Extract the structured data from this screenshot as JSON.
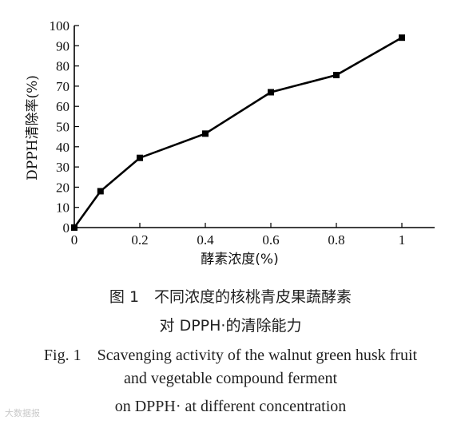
{
  "chart_data": {
    "type": "line",
    "x": [
      0,
      0.08,
      0.2,
      0.4,
      0.6,
      0.8,
      1.0
    ],
    "y": [
      0,
      18,
      34.5,
      46.5,
      67,
      75.5,
      94
    ],
    "xlabel": "酵素浓度(%)",
    "ylabel": "DPPH清除率(%)",
    "xlim": [
      0,
      1.05
    ],
    "ylim": [
      0,
      100
    ],
    "x_ticks": [
      "0",
      "0.2",
      "0.4",
      "0.6",
      "0.8",
      "1"
    ],
    "x_tick_values": [
      0,
      0.2,
      0.4,
      0.6,
      0.8,
      1
    ],
    "y_ticks": [
      "0",
      "10",
      "20",
      "30",
      "40",
      "50",
      "60",
      "70",
      "80",
      "90",
      "100"
    ],
    "y_tick_values": [
      0,
      10,
      20,
      30,
      40,
      50,
      60,
      70,
      80,
      90,
      100
    ],
    "grid": false,
    "marker": "square",
    "color": "#000000"
  },
  "caption": {
    "cn_line1": "图 1　不同浓度的核桃青皮果蔬酵素",
    "cn_line2": "对 DPPH·的清除能力",
    "en_line1": "Fig. 1　Scavenging activity of the walnut green husk fruit",
    "en_line2": "and vegetable compound ferment",
    "en_line3": "on DPPH· at different concentration"
  },
  "watermark": "大数据报"
}
